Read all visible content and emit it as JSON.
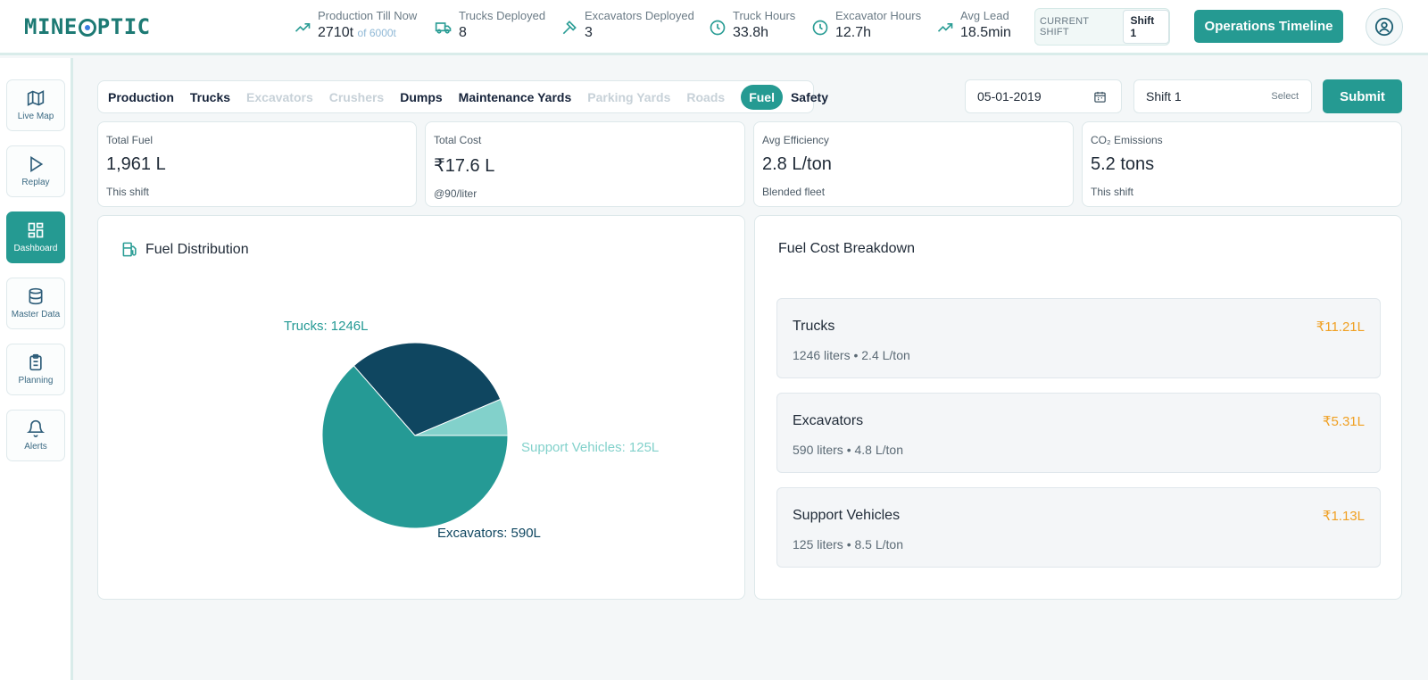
{
  "app": {
    "logo_left": "MINE",
    "logo_right": "PTIC"
  },
  "header": {
    "stats": [
      {
        "label": "Production Till Now",
        "value": "2710t",
        "extra": "of 6000t",
        "icon": "trending-up-icon"
      },
      {
        "label": "Trucks Deployed",
        "value": "8",
        "icon": "truck-icon"
      },
      {
        "label": "Excavators Deployed",
        "value": "3",
        "icon": "hammer-icon"
      },
      {
        "label": "Truck Hours",
        "value": "33.8h",
        "icon": "clock-icon"
      },
      {
        "label": "Excavator Hours",
        "value": "12.7h",
        "icon": "clock-icon"
      },
      {
        "label": "Avg Lead",
        "value": "18.5min",
        "icon": "trending-up-icon"
      }
    ],
    "current_shift_label": "CURRENT SHIFT",
    "current_shift_value": "Shift 1",
    "ops_button": "Operations Timeline"
  },
  "sidebar": {
    "items": [
      {
        "label": "Live Map",
        "icon": "map-icon"
      },
      {
        "label": "Replay",
        "icon": "play-icon"
      },
      {
        "label": "Dashboard",
        "icon": "dashboard-icon",
        "active": true
      },
      {
        "label": "Master Data",
        "icon": "database-icon"
      },
      {
        "label": "Planning",
        "icon": "clipboard-icon"
      },
      {
        "label": "Alerts",
        "icon": "bell-icon"
      }
    ]
  },
  "tabs": [
    {
      "label": "Production",
      "state": "normal"
    },
    {
      "label": "Trucks",
      "state": "normal"
    },
    {
      "label": "Excavators",
      "state": "disabled"
    },
    {
      "label": "Crushers",
      "state": "disabled"
    },
    {
      "label": "Dumps",
      "state": "normal"
    },
    {
      "label": "Maintenance Yards",
      "state": "normal"
    },
    {
      "label": "Parking Yards",
      "state": "disabled"
    },
    {
      "label": "Roads",
      "state": "disabled"
    },
    {
      "label": "Fuel",
      "state": "active"
    },
    {
      "label": "Safety",
      "state": "normal"
    }
  ],
  "filters": {
    "date": "05-01-2019",
    "shift": "Shift 1",
    "shift_select_hint": "Select",
    "submit": "Submit"
  },
  "kpis": [
    {
      "title": "Total Fuel",
      "value": "1,961 L",
      "sub": "This shift"
    },
    {
      "title": "Total Cost",
      "value": "₹17.6 L",
      "sub": "@90/liter"
    },
    {
      "title": "Avg Efficiency",
      "value": "2.8 L/ton",
      "sub": "Blended fleet"
    },
    {
      "title": "CO₂ Emissions",
      "value": "5.2 tons",
      "sub": "This shift"
    }
  ],
  "fuel_distribution": {
    "title": "Fuel Distribution"
  },
  "chart_data": {
    "type": "pie",
    "title": "Fuel Distribution",
    "slices": [
      {
        "name": "Trucks",
        "value": 1246,
        "label": "Trucks: 1246L",
        "color": "#259a95"
      },
      {
        "name": "Excavators",
        "value": 590,
        "label": "Excavators: 590L",
        "color": "#0f4660"
      },
      {
        "name": "Support Vehicles",
        "value": 125,
        "label": "Support Vehicles: 125L",
        "color": "#82d1cb"
      }
    ]
  },
  "cost_breakdown": {
    "title": "Fuel Cost Breakdown",
    "items": [
      {
        "name": "Trucks",
        "amount": "₹11.21L",
        "detail": "1246 liters • 2.4 L/ton"
      },
      {
        "name": "Excavators",
        "amount": "₹5.31L",
        "detail": "590 liters • 4.8 L/ton"
      },
      {
        "name": "Support Vehicles",
        "amount": "₹1.13L",
        "detail": "125 liters • 8.5 L/ton"
      }
    ]
  }
}
